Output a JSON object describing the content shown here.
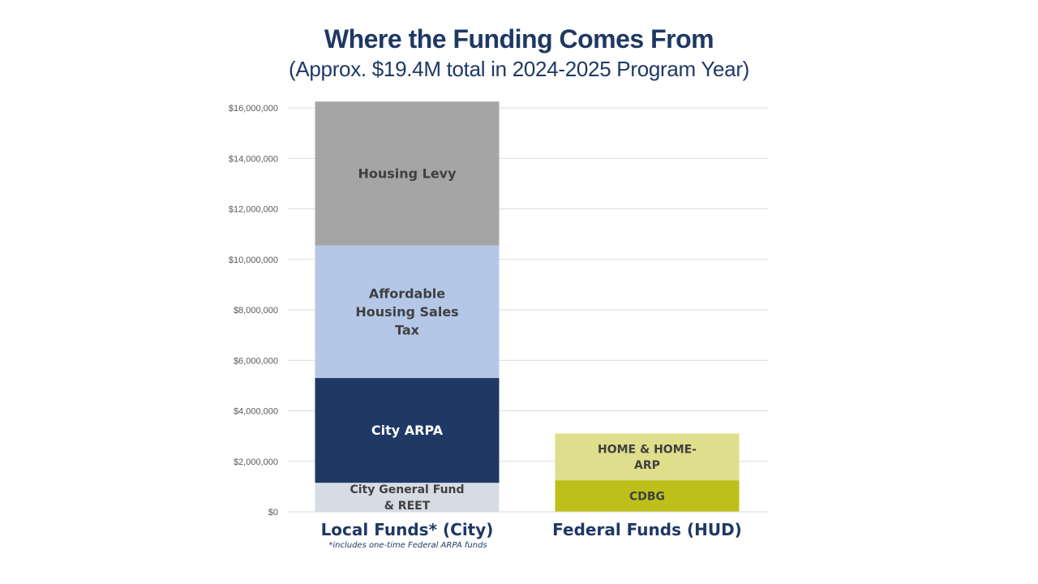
{
  "chart_data": {
    "type": "bar",
    "stacked": true,
    "title": "Where the Funding Comes From",
    "subtitle": "(Approx. $19.4M total in 2024-2025 Program Year)",
    "categories": [
      "Local Funds* (City)",
      "Federal Funds (HUD)"
    ],
    "series": [
      {
        "name": "City General Fund & REET",
        "lines": [
          "City General Fund",
          "& REET"
        ],
        "values": [
          1150000,
          0
        ],
        "color": "#d6dce4",
        "text_color": "#404040"
      },
      {
        "name": "City ARPA",
        "lines": [
          "City ARPA"
        ],
        "values": [
          4150000,
          0
        ],
        "color": "#203864",
        "text_color": "#ffffff"
      },
      {
        "name": "Affordable Housing Sales Tax",
        "lines": [
          "Affordable",
          "Housing Sales",
          "Tax"
        ],
        "values": [
          5250000,
          0
        ],
        "color": "#b4c7e7",
        "text_color": "#404040"
      },
      {
        "name": "Housing Levy",
        "lines": [
          "Housing Levy"
        ],
        "values": [
          5700000,
          0
        ],
        "color": "#a5a5a5",
        "text_color": "#404040"
      },
      {
        "name": "CDBG",
        "lines": [
          "CDBG"
        ],
        "values": [
          0,
          1250000
        ],
        "color": "#bfbf1a",
        "text_color": "#404040"
      },
      {
        "name": "HOME & HOME-ARP",
        "lines": [
          "HOME & HOME-",
          "ARP"
        ],
        "values": [
          0,
          1850000
        ],
        "color": "#dede8c",
        "text_color": "#404040"
      }
    ],
    "yticks": [
      "$0",
      "$2,000,000",
      "$4,000,000",
      "$6,000,000",
      "$8,000,000",
      "$10,000,000",
      "$12,000,000",
      "$14,000,000",
      "$16,000,000"
    ],
    "ylim": [
      0,
      16000000
    ],
    "grid": true,
    "legend": "none",
    "footnote": "*includes one-time Federal ARPA funds"
  }
}
